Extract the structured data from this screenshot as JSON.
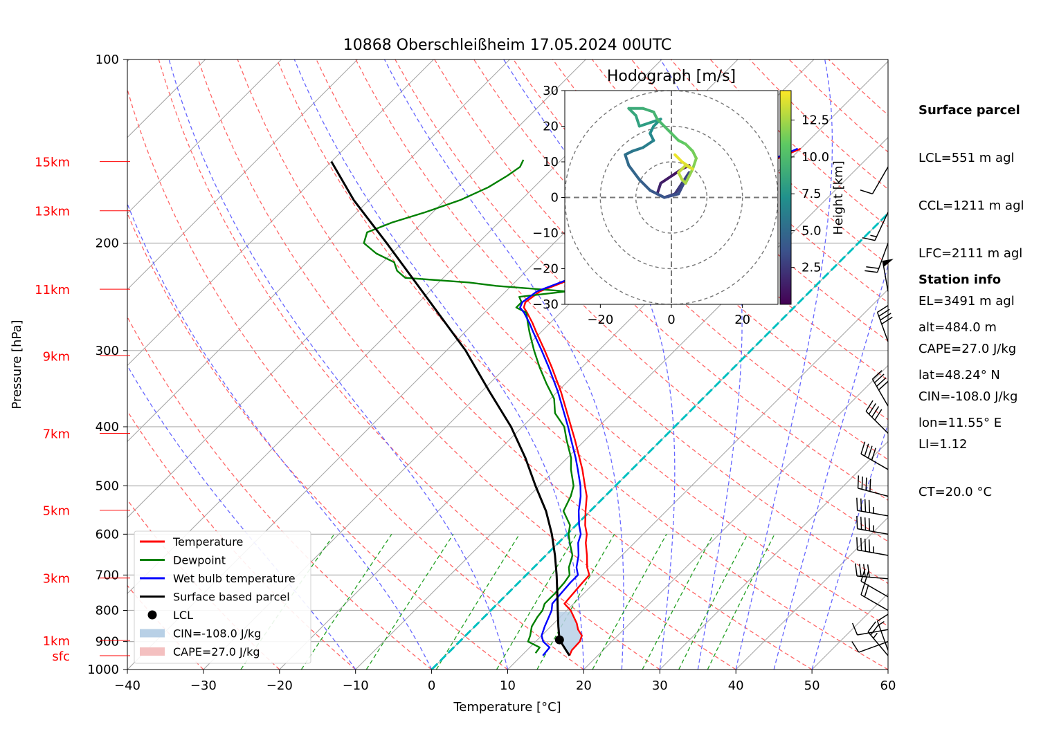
{
  "title": "10868 Oberschleißheim 17.05.2024 00UTC",
  "chart_data": {
    "type": "line",
    "title": "10868 Oberschleißheim 17.05.2024 00UTC",
    "xlabel": "Temperature [°C]",
    "ylabel": "Pressure [hPa]",
    "xlim": [
      -40,
      60
    ],
    "ylim": [
      1000,
      100
    ],
    "y_scale": "log",
    "skew": true,
    "xticks": [
      "−40",
      "−30",
      "−20",
      "−10",
      "0",
      "10",
      "20",
      "30",
      "40",
      "50",
      "60"
    ],
    "yticks": [
      "100",
      "200",
      "300",
      "400",
      "500",
      "600",
      "700",
      "800",
      "900",
      "1000"
    ],
    "height_labels": [
      {
        "label": "15km",
        "p": 147
      },
      {
        "label": "13km",
        "p": 177
      },
      {
        "label": "11km",
        "p": 238
      },
      {
        "label": "9km",
        "p": 306
      },
      {
        "label": "7km",
        "p": 410
      },
      {
        "label": "5km",
        "p": 548
      },
      {
        "label": "3km",
        "p": 708
      },
      {
        "label": "1km",
        "p": 896
      },
      {
        "label": "sfc",
        "p": 949
      }
    ],
    "series": [
      {
        "name": "Temperature",
        "color": "#ff0000",
        "p": [
          949,
          930,
          900,
          880,
          860,
          840,
          800,
          780,
          750,
          720,
          700,
          680,
          650,
          620,
          600,
          580,
          550,
          520,
          500,
          470,
          450,
          420,
          400,
          370,
          350,
          320,
          300,
          280,
          270,
          260,
          255,
          250,
          240,
          230,
          220,
          210,
          200,
          195,
          185,
          175,
          165,
          160,
          152,
          146,
          140
        ],
        "t": [
          16.3,
          15.9,
          15.8,
          15.3,
          14.0,
          13.0,
          10.5,
          8.8,
          8.6,
          8.4,
          8.3,
          7.0,
          5.4,
          3.6,
          2.6,
          1.2,
          -0.6,
          -2.4,
          -4.0,
          -6.5,
          -8.4,
          -11.4,
          -13.6,
          -17.1,
          -19.6,
          -23.9,
          -27.1,
          -30.6,
          -32.4,
          -34.4,
          -35.5,
          -36.0,
          -35.5,
          -33.2,
          -32.0,
          -32.0,
          -30.8,
          -29.3,
          -29.0,
          -26.0,
          -27.0,
          -24.5,
          -24.0,
          -22.0,
          -20.0
        ]
      },
      {
        "name": "Dewpoint",
        "color": "#008000",
        "p": [
          940,
          920,
          900,
          880,
          850,
          820,
          800,
          780,
          750,
          720,
          700,
          680,
          650,
          620,
          600,
          580,
          550,
          520,
          500,
          470,
          450,
          420,
          400,
          380,
          360,
          340,
          320,
          300,
          280,
          270,
          260,
          255,
          250,
          245,
          240,
          235,
          232,
          228,
          222,
          215,
          208,
          200,
          192,
          185,
          178,
          170,
          162,
          155,
          150,
          146
        ],
        "t": [
          11.5,
          11.3,
          9.0,
          8.5,
          7.5,
          7.0,
          6.8,
          6.2,
          6.2,
          6.0,
          5.7,
          4.6,
          3.5,
          1.5,
          0.2,
          -0.8,
          -3.5,
          -4.5,
          -5.5,
          -8.0,
          -9.5,
          -12.5,
          -14.5,
          -17.5,
          -19.5,
          -22.5,
          -25.5,
          -28.5,
          -31.5,
          -33.0,
          -34.5,
          -36.5,
          -36.5,
          -37.5,
          -32.0,
          -42.0,
          -46.0,
          -55.0,
          -57.0,
          -58.5,
          -62.0,
          -65.0,
          -66.0,
          -64.0,
          -61.0,
          -58.0,
          -56.0,
          -55.0,
          -54.5,
          -55.0
        ]
      },
      {
        "name": "Wet bulb temperature",
        "color": "#0000ff",
        "p": [
          949,
          920,
          900,
          880,
          850,
          820,
          800,
          780,
          750,
          720,
          700,
          680,
          650,
          620,
          600,
          580,
          550,
          520,
          500,
          470,
          450,
          420,
          400,
          370,
          350,
          320,
          300,
          280,
          270,
          260,
          255,
          250,
          240,
          230,
          220,
          210,
          200,
          195,
          185,
          175,
          165,
          160,
          152,
          146,
          140
        ],
        "t": [
          12.8,
          12.6,
          11.0,
          10.0,
          9.2,
          8.5,
          8.0,
          7.2,
          7.0,
          6.8,
          6.8,
          5.6,
          4.3,
          2.6,
          1.8,
          0.4,
          -1.5,
          -3.2,
          -4.6,
          -7.1,
          -8.9,
          -11.9,
          -14.0,
          -17.5,
          -20.0,
          -24.3,
          -27.5,
          -31.0,
          -32.8,
          -34.8,
          -36.0,
          -36.4,
          -35.9,
          -33.5,
          -32.3,
          -32.4,
          -31.1,
          -29.6,
          -29.3,
          -26.4,
          -27.4,
          -24.9,
          -24.4,
          -22.4,
          -20.4
        ]
      },
      {
        "name": "Surface based parcel",
        "color": "#000000",
        "p": [
          949,
          894,
          850,
          800,
          750,
          700,
          650,
          600,
          550,
          500,
          450,
          400,
          350,
          300,
          250,
          200,
          170,
          147
        ],
        "t": [
          16.3,
          12.9,
          11.0,
          8.8,
          6.5,
          4.0,
          1.2,
          -2.0,
          -5.8,
          -10.5,
          -15.5,
          -21.5,
          -29.0,
          -37.5,
          -48.5,
          -62.0,
          -72.0,
          -80.0
        ]
      }
    ],
    "lcl": {
      "label": "LCL",
      "p": 894,
      "t": 12.9
    },
    "cin_label": "CIN=-108.0 J/kg",
    "cape_label": "CAPE=27.0 J/kg",
    "legend": {
      "placement": "lower-left",
      "entries": [
        "Temperature",
        "Dewpoint",
        "Wet bulb temperature",
        "Surface based parcel",
        "LCL",
        "CIN=-108.0 J/kg",
        "CAPE=27.0 J/kg"
      ]
    },
    "wind_barbs": {
      "p": [
        949,
        930,
        900,
        860,
        800,
        760,
        710,
        650,
        600,
        560,
        520,
        470,
        410,
        370,
        290,
        240,
        200,
        178,
        150
      ],
      "speed_kt": [
        25,
        15,
        10,
        10,
        20,
        20,
        40,
        45,
        45,
        45,
        40,
        40,
        40,
        40,
        40,
        50,
        20,
        15,
        10
      ],
      "dir_deg": [
        320,
        340,
        250,
        260,
        300,
        300,
        275,
        280,
        280,
        280,
        285,
        300,
        315,
        330,
        340,
        350,
        200,
        205,
        210
      ]
    },
    "hodograph": {
      "title": "Hodograph [m/s]",
      "xlim": [
        -30,
        30
      ],
      "ylim": [
        -30,
        30
      ],
      "ticks": [
        "−30",
        "−20",
        "−10",
        "0",
        "10",
        "20",
        "30"
      ],
      "xticks": [
        "−20",
        "0",
        "20"
      ],
      "rings": [
        10,
        20,
        30
      ],
      "colorbar_label": "Height [km]",
      "colorbar_ticks": [
        "2.5",
        "5.0",
        "7.5",
        "10.0",
        "12.5"
      ],
      "colorbar_range": [
        0,
        14.5
      ],
      "u": [
        5,
        3,
        0,
        -3,
        -4,
        -2,
        1,
        3,
        5,
        4,
        2,
        -2,
        -6,
        -9,
        -12,
        -13,
        -11,
        -8,
        -5,
        -6,
        -5,
        -3,
        -6,
        -9,
        -10,
        -12,
        -8,
        -5,
        -4,
        -2,
        0,
        2,
        4,
        6,
        7,
        6,
        5,
        4,
        3,
        2,
        4,
        6,
        3,
        1
      ],
      "v": [
        9,
        8,
        6,
        4,
        1,
        0,
        1,
        4,
        7,
        5,
        1,
        0,
        2,
        5,
        9,
        12,
        13,
        14,
        16,
        18,
        20,
        22,
        21,
        20,
        23,
        25,
        25,
        24,
        22,
        20,
        18,
        16,
        15,
        13,
        11,
        8,
        6,
        4,
        5,
        7,
        9,
        8,
        10,
        12
      ],
      "height_km": [
        0.5,
        0.8,
        1.1,
        1.5,
        1.9,
        2.2,
        2.5,
        2.7,
        3.0,
        3.3,
        3.6,
        3.9,
        4.3,
        4.7,
        5.0,
        5.4,
        5.8,
        6.2,
        6.6,
        7.0,
        7.4,
        7.7,
        8.0,
        8.3,
        8.6,
        8.9,
        9.2,
        9.5,
        9.8,
        10.1,
        10.4,
        10.8,
        11.1,
        11.4,
        11.7,
        12.0,
        12.3,
        12.6,
        12.9,
        13.2,
        13.5,
        13.8,
        14.1,
        14.4
      ]
    }
  },
  "surface_parcel": {
    "header": "Surface parcel",
    "lcl": "LCL=551 m agl",
    "ccl": "CCL=1211 m agl",
    "lfc": "LFC=2111 m agl",
    "el": "EL=3491 m agl",
    "cape": "CAPE=27.0 J/kg",
    "cin": "CIN=-108.0 J/kg",
    "li": "LI=1.12",
    "ct": "CT=20.0 °C"
  },
  "station_info": {
    "header": "Station info",
    "alt": "alt=484.0 m",
    "lat": "lat=48.24° N",
    "lon": "lon=11.55° E"
  },
  "colors": {
    "temperature": "#ff0000",
    "dewpoint": "#008000",
    "wetbulb": "#0000ff",
    "parcel": "#000000",
    "dry_adiabat": "#ff6666",
    "moist_adiabat": "#6666ff",
    "mixing_ratio": "#22a022",
    "freezing_isotherm": "#00c0c0",
    "cin_fill": "#b8d0e6",
    "cape_fill": "#f4c0c0"
  }
}
